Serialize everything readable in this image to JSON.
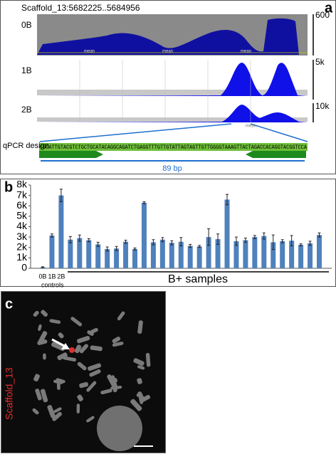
{
  "panel_a": {
    "letter": "a",
    "title": "Scaffold_13:5682225..5684956",
    "tracks": [
      {
        "name": "0B",
        "scale": "600"
      },
      {
        "name": "1B",
        "scale": "5k"
      },
      {
        "name": "2B",
        "scale": "10k"
      }
    ],
    "mean_labels": [
      "mean",
      "mean",
      "mean",
      "mean"
    ],
    "sequence": "CGCATTGTACGTCTGCTGCATACAGGCAGATCTGAGGTTTGTTGTATTAGTAGTTGTTGGGGTAAAGTTACTAGACCACAGGTACGGTCCA",
    "design_label": "qPCR design",
    "amplicon_label": "89 bp"
  },
  "chart_data": {
    "type": "bar",
    "letter": "b",
    "categories": [
      "0B",
      "1B",
      "2B",
      null,
      null,
      null,
      null,
      null,
      null,
      null,
      null,
      null,
      null,
      null,
      null,
      null,
      null,
      null,
      null,
      null,
      null,
      null,
      null,
      null,
      null,
      null,
      null,
      null,
      null,
      null,
      null
    ],
    "values": [
      100,
      3150,
      7000,
      2750,
      2900,
      2700,
      2300,
      1850,
      1900,
      2550,
      1850,
      6300,
      2500,
      2750,
      2450,
      2550,
      2150,
      2100,
      3000,
      2800,
      6600,
      2600,
      2700,
      3000,
      3100,
      2500,
      2600,
      2650,
      2250,
      2400,
      3200
    ],
    "errors": [
      50,
      150,
      600,
      300,
      300,
      150,
      200,
      200,
      200,
      150,
      100,
      100,
      250,
      200,
      200,
      400,
      150,
      100,
      800,
      500,
      500,
      400,
      200,
      150,
      300,
      700,
      150,
      500,
      100,
      200,
      200
    ],
    "color": "#4f81bd",
    "ylim": [
      0,
      8000
    ],
    "yticks": [
      0,
      {
        "value": 1000,
        "label": "1k"
      },
      {
        "value": 2000,
        "label": "2k"
      },
      {
        "value": 3000,
        "label": "3k"
      },
      {
        "value": 4000,
        "label": "4k"
      },
      {
        "value": 5000,
        "label": "5k"
      },
      {
        "value": 6000,
        "label": "6k"
      },
      {
        "value": 7000,
        "label": "7k"
      },
      {
        "value": 8000,
        "label": "8k"
      }
    ],
    "group_labels": [
      "controls",
      "B+ samples"
    ]
  },
  "panel_c": {
    "letter": "c",
    "probe_label": "Scaffold_13"
  }
}
